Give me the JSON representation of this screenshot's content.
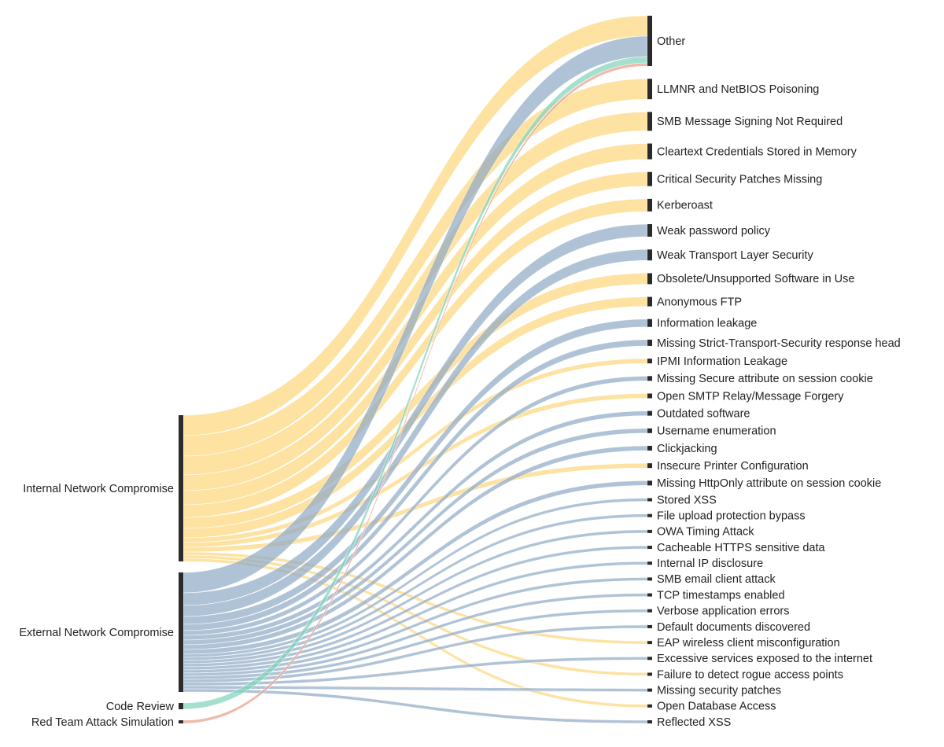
{
  "chart_data": {
    "type": "sankey",
    "nodes": [
      {
        "name": "Internal Network Compromise",
        "color": "#fcd57a"
      },
      {
        "name": "External Network Compromise",
        "color": "#8eaac4"
      },
      {
        "name": "Code Review",
        "color": "#7fd3bb"
      },
      {
        "name": "Red Team Attack Simulation",
        "color": "#e99b86"
      },
      {
        "name": "Other"
      },
      {
        "name": "LLMNR and NetBIOS Poisoning"
      },
      {
        "name": "SMB Message Signing Not Required"
      },
      {
        "name": "Cleartext Credentials Stored in Memory"
      },
      {
        "name": "Critical Security Patches Missing"
      },
      {
        "name": "Kerberoast"
      },
      {
        "name": "Weak password policy"
      },
      {
        "name": "Weak Transport Layer Security"
      },
      {
        "name": "Obsolete/Unsupported Software in Use"
      },
      {
        "name": "Anonymous FTP"
      },
      {
        "name": "Information leakage"
      },
      {
        "name": "Missing Strict-Transport-Security response head"
      },
      {
        "name": "IPMI Information Leakage"
      },
      {
        "name": "Missing Secure attribute on session cookie"
      },
      {
        "name": "Open SMTP Relay/Message Forgery"
      },
      {
        "name": "Outdated software"
      },
      {
        "name": "Username enumeration"
      },
      {
        "name": "Clickjacking"
      },
      {
        "name": "Insecure Printer Configuration"
      },
      {
        "name": "Missing HttpOnly attribute on session cookie"
      },
      {
        "name": "Stored XSS"
      },
      {
        "name": "File upload protection bypass"
      },
      {
        "name": "OWA Timing Attack"
      },
      {
        "name": "Cacheable HTTPS sensitive data"
      },
      {
        "name": "Internal IP disclosure"
      },
      {
        "name": "SMB email client attack"
      },
      {
        "name": "TCP timestamps enabled"
      },
      {
        "name": "Verbose application errors"
      },
      {
        "name": "Default documents discovered"
      },
      {
        "name": "EAP wireless client misconfiguration"
      },
      {
        "name": "Excessive services exposed to the internet"
      },
      {
        "name": "Failure to detect rogue access points"
      },
      {
        "name": "Missing security patches"
      },
      {
        "name": "Open Database Access"
      },
      {
        "name": "Reflected XSS"
      }
    ],
    "links": [
      {
        "source": "Internal Network Compromise",
        "target": "Other",
        "value": 13
      },
      {
        "source": "Internal Network Compromise",
        "target": "LLMNR and NetBIOS Poisoning",
        "value": 13
      },
      {
        "source": "Internal Network Compromise",
        "target": "SMB Message Signing Not Required",
        "value": 12
      },
      {
        "source": "Internal Network Compromise",
        "target": "Cleartext Credentials Stored in Memory",
        "value": 10
      },
      {
        "source": "Internal Network Compromise",
        "target": "Critical Security Patches Missing",
        "value": 9
      },
      {
        "source": "Internal Network Compromise",
        "target": "Kerberoast",
        "value": 8
      },
      {
        "source": "Internal Network Compromise",
        "target": "Obsolete/Unsupported Software in Use",
        "value": 7
      },
      {
        "source": "Internal Network Compromise",
        "target": "Anonymous FTP",
        "value": 6
      },
      {
        "source": "Internal Network Compromise",
        "target": "IPMI Information Leakage",
        "value": 3
      },
      {
        "source": "Internal Network Compromise",
        "target": "Open SMTP Relay/Message Forgery",
        "value": 3
      },
      {
        "source": "Internal Network Compromise",
        "target": "Insecure Printer Configuration",
        "value": 3
      },
      {
        "source": "Internal Network Compromise",
        "target": "EAP wireless client misconfiguration",
        "value": 2
      },
      {
        "source": "Internal Network Compromise",
        "target": "Failure to detect rogue access points",
        "value": 2
      },
      {
        "source": "Internal Network Compromise",
        "target": "Open Database Access",
        "value": 2
      },
      {
        "source": "External Network Compromise",
        "target": "Other",
        "value": 13
      },
      {
        "source": "External Network Compromise",
        "target": "Weak password policy",
        "value": 8
      },
      {
        "source": "External Network Compromise",
        "target": "Weak Transport Layer Security",
        "value": 7
      },
      {
        "source": "External Network Compromise",
        "target": "Information leakage",
        "value": 5
      },
      {
        "source": "External Network Compromise",
        "target": "Missing Strict-Transport-Security response head",
        "value": 4
      },
      {
        "source": "External Network Compromise",
        "target": "Missing Secure attribute on session cookie",
        "value": 3
      },
      {
        "source": "External Network Compromise",
        "target": "Outdated software",
        "value": 3
      },
      {
        "source": "External Network Compromise",
        "target": "Username enumeration",
        "value": 3
      },
      {
        "source": "External Network Compromise",
        "target": "Clickjacking",
        "value": 3
      },
      {
        "source": "External Network Compromise",
        "target": "Missing HttpOnly attribute on session cookie",
        "value": 3
      },
      {
        "source": "External Network Compromise",
        "target": "Stored XSS",
        "value": 2
      },
      {
        "source": "External Network Compromise",
        "target": "File upload protection bypass",
        "value": 2
      },
      {
        "source": "External Network Compromise",
        "target": "OWA Timing Attack",
        "value": 2
      },
      {
        "source": "External Network Compromise",
        "target": "Cacheable HTTPS sensitive data",
        "value": 2
      },
      {
        "source": "External Network Compromise",
        "target": "Internal IP disclosure",
        "value": 2
      },
      {
        "source": "External Network Compromise",
        "target": "SMB email client attack",
        "value": 2
      },
      {
        "source": "External Network Compromise",
        "target": "TCP timestamps enabled",
        "value": 2
      },
      {
        "source": "External Network Compromise",
        "target": "Verbose application errors",
        "value": 2
      },
      {
        "source": "External Network Compromise",
        "target": "Default documents discovered",
        "value": 2
      },
      {
        "source": "External Network Compromise",
        "target": "Excessive services exposed to the internet",
        "value": 2
      },
      {
        "source": "External Network Compromise",
        "target": "Missing security patches",
        "value": 2
      },
      {
        "source": "External Network Compromise",
        "target": "Reflected XSS",
        "value": 2
      },
      {
        "source": "Code Review",
        "target": "Other",
        "value": 4
      },
      {
        "source": "Red Team Attack Simulation",
        "target": "Other",
        "value": 2
      }
    ]
  }
}
